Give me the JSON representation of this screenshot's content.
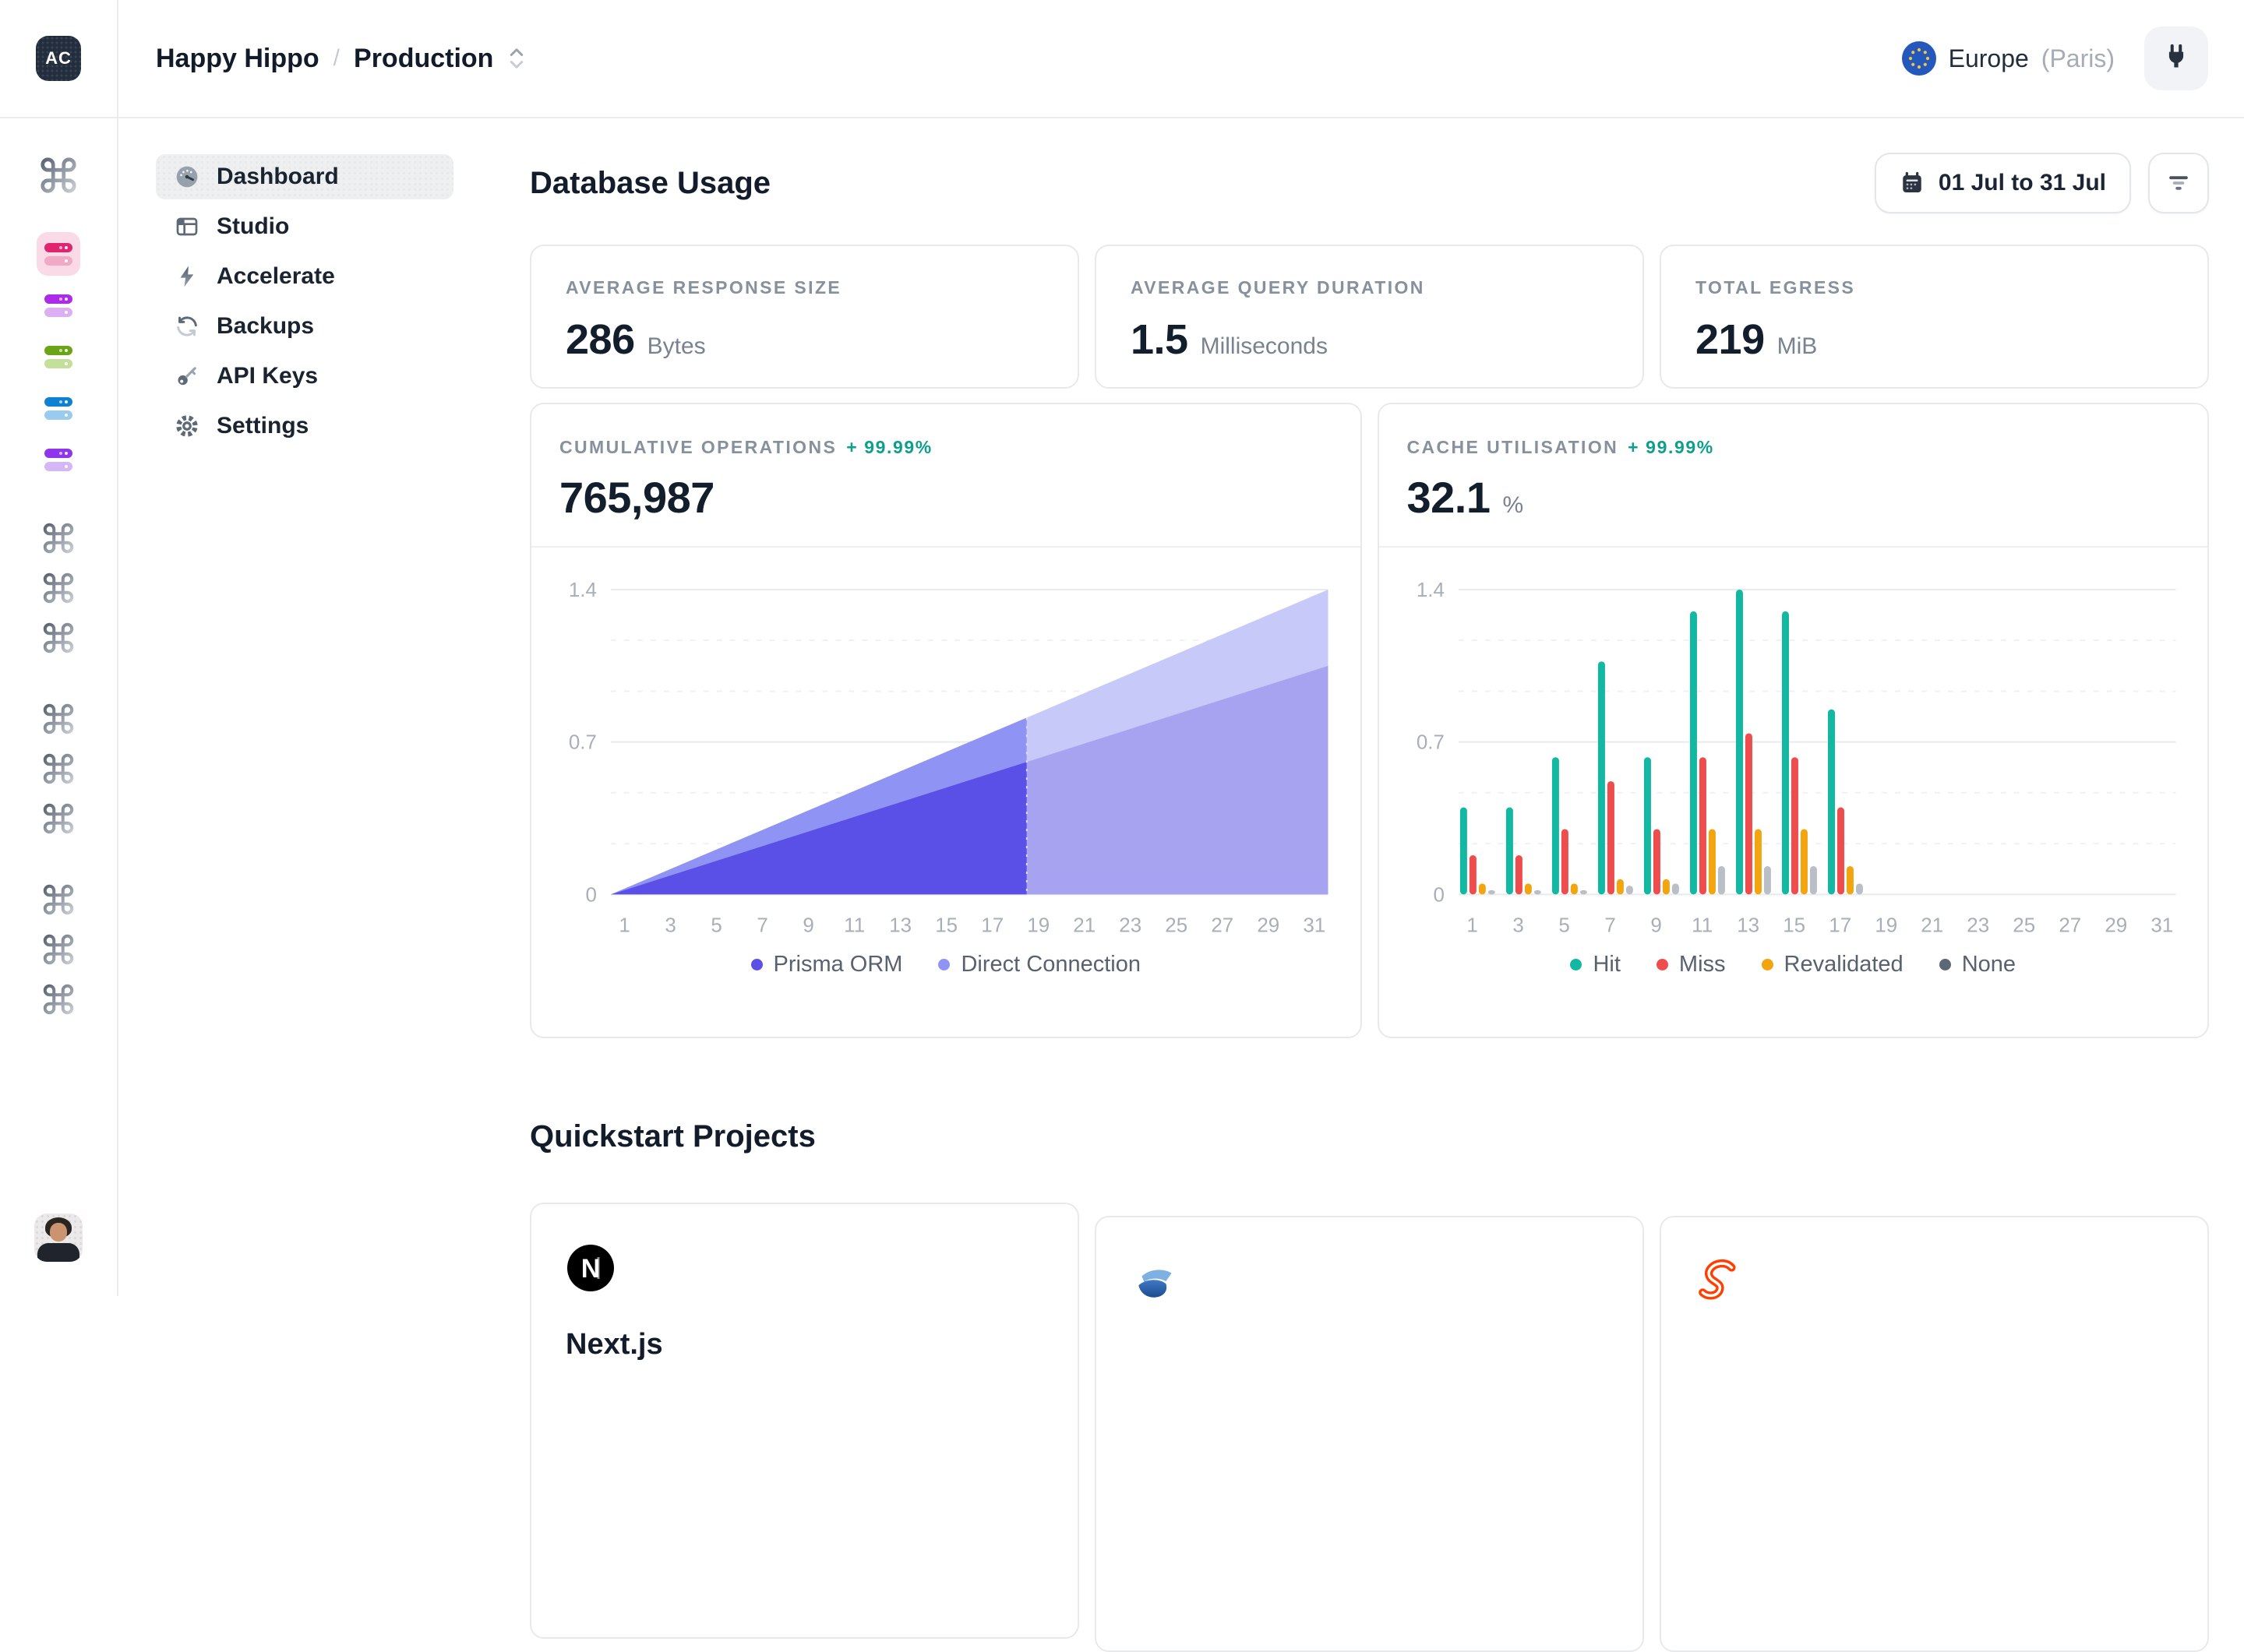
{
  "topbar": {
    "avatar_initials": "AC",
    "breadcrumb": {
      "org": "Happy Hippo",
      "separator": "/",
      "project": "Production"
    },
    "region": {
      "name": "Europe",
      "detail": "(Paris)"
    }
  },
  "rail": {
    "workspace_icon": "command-icon",
    "databases": [
      {
        "name": "database-pink",
        "active": true,
        "top": "#E0246E",
        "bottom": "#F2A9C5",
        "bg": "#FBDAE7"
      },
      {
        "name": "database-purple",
        "top": "#AC2BE8",
        "bottom": "#DCAFF5"
      },
      {
        "name": "database-green",
        "top": "#6BA414",
        "bottom": "#C4DF9A"
      },
      {
        "name": "database-blue",
        "top": "#0E81D3",
        "bottom": "#9ACBEF"
      },
      {
        "name": "database-violet",
        "top": "#8F35EE",
        "bottom": "#D5B6F8"
      }
    ],
    "project_groups": [
      3,
      3,
      3
    ]
  },
  "sidebar": {
    "items": [
      {
        "label": "Dashboard",
        "icon": "gauge-icon",
        "active": true
      },
      {
        "label": "Studio",
        "icon": "panels-icon",
        "active": false
      },
      {
        "label": "Accelerate",
        "icon": "lightning-icon",
        "active": false
      },
      {
        "label": "Backups",
        "icon": "refresh-icon",
        "active": false
      },
      {
        "label": "API Keys",
        "icon": "key-icon",
        "active": false
      },
      {
        "label": "Settings",
        "icon": "gear-icon",
        "active": false
      }
    ]
  },
  "page": {
    "title": "Database Usage",
    "date_range": "01 Jul to 31 Jul"
  },
  "stats": [
    {
      "label": "AVERAGE RESPONSE SIZE",
      "value": "286",
      "unit": "Bytes"
    },
    {
      "label": "AVERAGE QUERY DURATION",
      "value": "1.5",
      "unit": "Milliseconds"
    },
    {
      "label": "TOTAL EGRESS",
      "value": "219",
      "unit": "MiB"
    }
  ],
  "charts": {
    "cumulative": {
      "label": "CUMULATIVE OPERATIONS",
      "delta": "+ 99.99%",
      "value": "765,987"
    },
    "cache": {
      "label": "CACHE UTILISATION",
      "delta": "+ 99.99%",
      "value": "32.1",
      "unit": "%"
    }
  },
  "chart_data": [
    {
      "type": "area",
      "title": "Cumulative Operations",
      "ylim": [
        0,
        1.4
      ],
      "y_ticks": [
        0,
        0.7,
        1.4
      ],
      "y_grid_dashed": [
        0.233,
        0.467,
        0.933,
        1.167
      ],
      "x_ticks": [
        1,
        3,
        5,
        7,
        9,
        11,
        13,
        15,
        17,
        19,
        21,
        23,
        25,
        27,
        29,
        31
      ],
      "growth": "linear-from-zero",
      "forecast_split_day": 18.5,
      "forecast_split_fraction": 0.58,
      "series": [
        {
          "name": "Prisma ORM",
          "color": "#5A50E8",
          "faded_color": "#A7A3F1",
          "start_value": 0,
          "end_value_day31": 1.05
        },
        {
          "name": "Direct Connection",
          "color": "#8F93F3",
          "faded_color": "#C7C9F9",
          "start_value": 0,
          "stacked_total_day31": 1.4
        }
      ],
      "legend_position": "bottom-center",
      "grid": "horizontal"
    },
    {
      "type": "bar",
      "title": "Cache Utilisation",
      "ylim": [
        0,
        1.4
      ],
      "y_ticks": [
        0,
        0.7,
        1.4
      ],
      "y_grid_dashed": [
        0.233,
        0.467,
        0.933,
        1.167
      ],
      "x_ticks": [
        1,
        3,
        5,
        7,
        9,
        11,
        13,
        15,
        17,
        19,
        21,
        23,
        25,
        27,
        29,
        31
      ],
      "group_days": [
        1,
        3,
        5,
        7,
        9,
        11,
        13,
        15,
        17
      ],
      "series": [
        {
          "name": "Hit",
          "color": "#13B8A3",
          "values": [
            0.4,
            0.4,
            0.63,
            1.07,
            0.63,
            1.3,
            1.4,
            1.3,
            0.85
          ]
        },
        {
          "name": "Miss",
          "color": "#EF4D4D",
          "values": [
            0.18,
            0.18,
            0.3,
            0.52,
            0.3,
            0.63,
            0.74,
            0.63,
            0.4
          ]
        },
        {
          "name": "Revalidated",
          "color": "#F2A50F",
          "values": [
            0.05,
            0.05,
            0.05,
            0.07,
            0.07,
            0.3,
            0.3,
            0.3,
            0.13
          ]
        },
        {
          "name": "None",
          "color": "#B9BEC7",
          "legend_color": "#5D6876",
          "values": [
            0.02,
            0.02,
            0.02,
            0.04,
            0.05,
            0.13,
            0.13,
            0.13,
            0.05
          ]
        }
      ],
      "legend_position": "bottom-center",
      "grid": "horizontal"
    }
  ],
  "quickstart": {
    "title": "Quickstart Projects",
    "cards": [
      {
        "title": "Next.js",
        "logo": "nextjs-logo"
      },
      {
        "logo": "solid-logo"
      },
      {
        "logo": "svelte-logo"
      }
    ]
  }
}
